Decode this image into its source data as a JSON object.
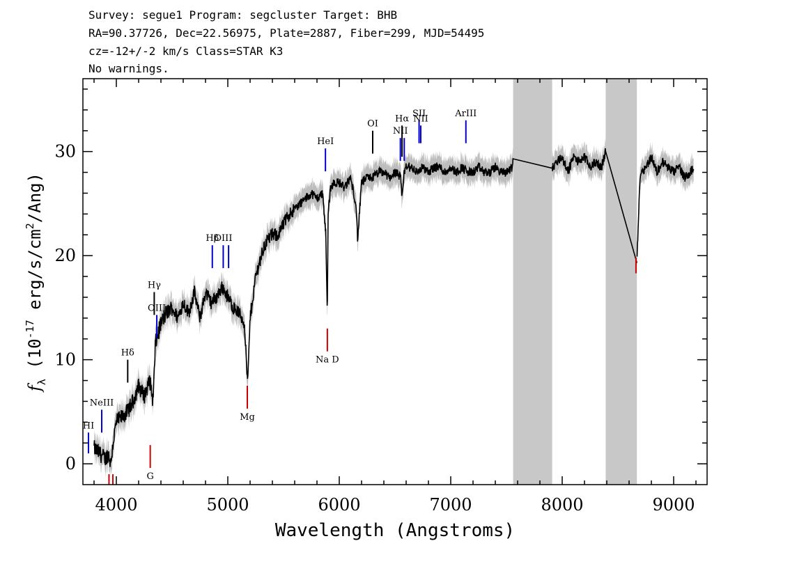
{
  "header": {
    "line1": "Survey: segue1 Program: segcluster Target: BHB",
    "line2": "RA=90.37726, Dec=22.56975, Plate=2887, Fiber=299, MJD=54495",
    "line3": "cz=-12+/-2 km/s Class=STAR K3",
    "line4": "No warnings."
  },
  "chart_data": {
    "type": "line",
    "xlabel": "Wavelength (Angstroms)",
    "ylabel": "f_λ (10^-17 erg/s/cm²/Ang)",
    "xlim": [
      3700,
      9300
    ],
    "ylim": [
      -2,
      37
    ],
    "xticks": [
      4000,
      5000,
      6000,
      7000,
      8000,
      9000
    ],
    "yticks": [
      0,
      10,
      20,
      30
    ],
    "masked_regions": [
      [
        7560,
        7910
      ],
      [
        8390,
        8670
      ]
    ],
    "series": [
      {
        "name": "flux",
        "color": "#000000",
        "x": [
          3800,
          3850,
          3900,
          3930,
          3950,
          3970,
          4000,
          4050,
          4100,
          4150,
          4200,
          4250,
          4300,
          4330,
          4350,
          4400,
          4450,
          4500,
          4550,
          4600,
          4650,
          4700,
          4750,
          4800,
          4850,
          4900,
          4950,
          5000,
          5050,
          5100,
          5150,
          5170,
          5180,
          5200,
          5250,
          5300,
          5350,
          5400,
          5450,
          5500,
          5550,
          5600,
          5650,
          5700,
          5750,
          5800,
          5850,
          5880,
          5893,
          5900,
          5920,
          5950,
          6000,
          6050,
          6100,
          6150,
          6165,
          6200,
          6250,
          6300,
          6350,
          6400,
          6450,
          6500,
          6550,
          6563,
          6580,
          6600,
          6650,
          6700,
          6750,
          6800,
          6850,
          6900,
          6950,
          7000,
          7050,
          7100,
          7150,
          7200,
          7250,
          7300,
          7350,
          7400,
          7450,
          7500,
          7550,
          7560,
          7910,
          7950,
          8000,
          8050,
          8100,
          8150,
          8200,
          8250,
          8300,
          8350,
          8390,
          8670,
          8700,
          8750,
          8800,
          8850,
          8900,
          8950,
          9000,
          9050,
          9100,
          9150,
          9180
        ],
        "y": [
          1.5,
          1.0,
          0.5,
          1.0,
          0.0,
          2.0,
          4.0,
          4.5,
          5.0,
          6.0,
          7.5,
          6.5,
          8.0,
          6.0,
          11.5,
          13.5,
          14.5,
          15.0,
          14.0,
          15.5,
          14.5,
          16.5,
          14.0,
          16.5,
          15.5,
          16.0,
          17.0,
          16.0,
          15.0,
          14.5,
          13.5,
          9.0,
          8.0,
          14.0,
          18.0,
          20.0,
          21.5,
          22.0,
          22.0,
          23.0,
          24.0,
          24.5,
          25.0,
          25.5,
          26.0,
          25.5,
          26.0,
          22.0,
          14.0,
          24.0,
          26.5,
          27.0,
          27.0,
          26.5,
          27.5,
          25.0,
          21.5,
          27.0,
          27.5,
          27.5,
          28.0,
          28.0,
          27.5,
          28.0,
          27.5,
          25.5,
          28.0,
          28.5,
          28.5,
          28.0,
          28.5,
          28.0,
          28.5,
          28.5,
          28.0,
          28.5,
          28.0,
          28.5,
          28.0,
          28.0,
          28.5,
          28.0,
          28.0,
          28.5,
          28.0,
          28.0,
          28.5,
          29.3,
          28.4,
          29.0,
          29.5,
          28.0,
          29.5,
          29.0,
          29.5,
          28.5,
          29.0,
          28.5,
          30.0,
          19.3,
          28.0,
          28.5,
          29.5,
          28.0,
          29.0,
          28.5,
          28.0,
          28.5,
          27.5,
          28.0,
          28.5
        ]
      }
    ],
    "line_markers": [
      {
        "label": "HI",
        "x": 3750,
        "color": "#0000cc",
        "position": "above",
        "y_top": 3.0,
        "y_bottom": 1.0
      },
      {
        "label": "NeIII",
        "x": 3869,
        "color": "#0000cc",
        "position": "above",
        "y_top": 5.2,
        "y_bottom": 3.0
      },
      {
        "label": "Hδ",
        "x": 4102,
        "color": "#000000",
        "position": "above",
        "y_top": 10.0,
        "y_bottom": 7.8
      },
      {
        "label": "Hγ",
        "x": 4340,
        "color": "#000000",
        "position": "above",
        "y_top": 16.5,
        "y_bottom": 14.3
      },
      {
        "label": "OIII",
        "x": 4363,
        "color": "#0000cc",
        "position": "above",
        "y_top": 14.3,
        "y_bottom": 12.1
      },
      {
        "label": "Hβ",
        "x": 4861,
        "color": "#0000cc",
        "position": "above",
        "y_top": 21.0,
        "y_bottom": 18.8
      },
      {
        "label": "OIII",
        "x": 4959,
        "color": "#0000cc",
        "position": "above",
        "y_top": 21.0,
        "y_bottom": 18.8
      },
      {
        "label": "",
        "x": 5007,
        "color": "#0000cc",
        "position": "above",
        "y_top": 21.0,
        "y_bottom": 18.8
      },
      {
        "label": "HeI",
        "x": 5876,
        "color": "#0000cc",
        "position": "above",
        "y_top": 30.3,
        "y_bottom": 28.1
      },
      {
        "label": "OI",
        "x": 6300,
        "color": "#000000",
        "position": "above",
        "y_top": 32.0,
        "y_bottom": 29.8
      },
      {
        "label": "NII",
        "x": 6548,
        "color": "#0000cc",
        "position": "above",
        "y_top": 31.3,
        "y_bottom": 29.1
      },
      {
        "label": "Hα",
        "x": 6563,
        "color": "#000000",
        "position": "above",
        "y_top": 32.5,
        "y_bottom": 29.5
      },
      {
        "label": "",
        "x": 6583,
        "color": "#0000cc",
        "position": "above",
        "y_top": 31.3,
        "y_bottom": 29.1
      },
      {
        "label": "SII",
        "x": 6716,
        "color": "#0000cc",
        "position": "above",
        "y_top": 33.0,
        "y_bottom": 30.8
      },
      {
        "label": "NII",
        "x": 6731,
        "color": "#0000cc",
        "position": "above",
        "y_top": 32.5,
        "y_bottom": 30.8
      },
      {
        "label": "ArIII",
        "x": 7136,
        "color": "#0000cc",
        "position": "above",
        "y_top": 33.0,
        "y_bottom": 30.8
      },
      {
        "label": "",
        "x": 3934,
        "color": "#cc0000",
        "position": "below",
        "y_top": -1.0,
        "y_bottom": -2.0
      },
      {
        "label": "",
        "x": 3969,
        "color": "#cc0000",
        "position": "below",
        "y_top": -1.0,
        "y_bottom": -2.0
      },
      {
        "label": "G",
        "x": 4304,
        "color": "#cc0000",
        "position": "below",
        "y_top": 1.8,
        "y_bottom": -0.4
      },
      {
        "label": "Mg",
        "x": 5175,
        "color": "#cc0000",
        "position": "below",
        "y_top": 7.5,
        "y_bottom": 5.3
      },
      {
        "label": "Na D",
        "x": 5893,
        "color": "#cc0000",
        "position": "below",
        "y_top": 13.0,
        "y_bottom": 10.8
      },
      {
        "label": "",
        "x": 8662,
        "color": "#cc0000",
        "position": "below",
        "y_top": 19.8,
        "y_bottom": 18.3
      }
    ]
  }
}
